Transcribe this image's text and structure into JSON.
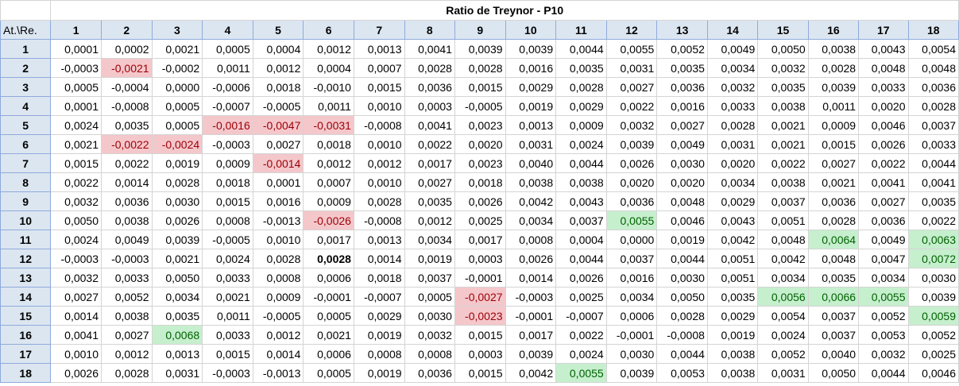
{
  "title": "Ratio de Treynor - P10",
  "corner": "At.\\Re.",
  "columns": [
    "1",
    "2",
    "3",
    "4",
    "5",
    "6",
    "7",
    "8",
    "9",
    "10",
    "11",
    "12",
    "13",
    "14",
    "15",
    "16",
    "17",
    "18"
  ],
  "rows": [
    {
      "label": "1",
      "values": [
        "0,0001",
        "0,0002",
        "0,0021",
        "0,0005",
        "0,0004",
        "0,0012",
        "0,0013",
        "0,0041",
        "0,0039",
        "0,0039",
        "0,0044",
        "0,0055",
        "0,0052",
        "0,0049",
        "0,0050",
        "0,0038",
        "0,0043",
        "0,0054"
      ]
    },
    {
      "label": "2",
      "values": [
        "-0,0003",
        "-0,0021",
        "-0,0002",
        "0,0011",
        "0,0012",
        "0,0004",
        "0,0007",
        "0,0028",
        "0,0028",
        "0,0016",
        "0,0035",
        "0,0031",
        "0,0035",
        "0,0034",
        "0,0032",
        "0,0028",
        "0,0048",
        "0,0048"
      ]
    },
    {
      "label": "3",
      "values": [
        "0,0005",
        "-0,0004",
        "0,0000",
        "-0,0006",
        "0,0018",
        "-0,0010",
        "0,0015",
        "0,0036",
        "0,0015",
        "0,0029",
        "0,0028",
        "0,0027",
        "0,0036",
        "0,0032",
        "0,0035",
        "0,0039",
        "0,0033",
        "0,0036"
      ]
    },
    {
      "label": "4",
      "values": [
        "0,0001",
        "-0,0008",
        "0,0005",
        "-0,0007",
        "-0,0005",
        "0,0011",
        "0,0010",
        "0,0003",
        "-0,0005",
        "0,0019",
        "0,0029",
        "0,0022",
        "0,0016",
        "0,0033",
        "0,0038",
        "0,0011",
        "0,0020",
        "0,0028"
      ]
    },
    {
      "label": "5",
      "values": [
        "0,0024",
        "0,0035",
        "0,0005",
        "-0,0016",
        "-0,0047",
        "-0,0031",
        "-0,0008",
        "0,0041",
        "0,0023",
        "0,0013",
        "0,0009",
        "0,0032",
        "0,0027",
        "0,0028",
        "0,0021",
        "0,0009",
        "0,0046",
        "0,0037"
      ]
    },
    {
      "label": "6",
      "values": [
        "0,0021",
        "-0,0022",
        "-0,0024",
        "-0,0003",
        "0,0027",
        "0,0018",
        "0,0010",
        "0,0022",
        "0,0020",
        "0,0031",
        "0,0024",
        "0,0039",
        "0,0049",
        "0,0031",
        "0,0021",
        "0,0015",
        "0,0026",
        "0,0033"
      ]
    },
    {
      "label": "7",
      "values": [
        "0,0015",
        "0,0022",
        "0,0019",
        "0,0009",
        "-0,0014",
        "0,0012",
        "0,0012",
        "0,0017",
        "0,0023",
        "0,0040",
        "0,0044",
        "0,0026",
        "0,0030",
        "0,0020",
        "0,0022",
        "0,0027",
        "0,0022",
        "0,0044"
      ]
    },
    {
      "label": "8",
      "values": [
        "0,0022",
        "0,0014",
        "0,0028",
        "0,0018",
        "0,0001",
        "0,0007",
        "0,0010",
        "0,0027",
        "0,0018",
        "0,0038",
        "0,0038",
        "0,0020",
        "0,0020",
        "0,0034",
        "0,0038",
        "0,0021",
        "0,0041",
        "0,0041"
      ]
    },
    {
      "label": "9",
      "values": [
        "0,0032",
        "0,0036",
        "0,0030",
        "0,0015",
        "0,0016",
        "0,0009",
        "0,0028",
        "0,0035",
        "0,0026",
        "0,0042",
        "0,0043",
        "0,0036",
        "0,0048",
        "0,0029",
        "0,0037",
        "0,0036",
        "0,0027",
        "0,0035"
      ]
    },
    {
      "label": "10",
      "values": [
        "0,0050",
        "0,0038",
        "0,0026",
        "0,0008",
        "-0,0013",
        "-0,0026",
        "-0,0008",
        "0,0012",
        "0,0025",
        "0,0034",
        "0,0037",
        "0,0055",
        "0,0046",
        "0,0043",
        "0,0051",
        "0,0028",
        "0,0036",
        "0,0022"
      ]
    },
    {
      "label": "11",
      "values": [
        "0,0024",
        "0,0049",
        "0,0039",
        "-0,0005",
        "0,0010",
        "0,0017",
        "0,0013",
        "0,0034",
        "0,0017",
        "0,0008",
        "0,0004",
        "0,0000",
        "0,0019",
        "0,0042",
        "0,0048",
        "0,0064",
        "0,0049",
        "0,0063"
      ]
    },
    {
      "label": "12",
      "values": [
        "-0,0003",
        "-0,0003",
        "0,0021",
        "0,0024",
        "0,0028",
        "0,0028",
        "0,0014",
        "0,0019",
        "0,0003",
        "0,0026",
        "0,0044",
        "0,0037",
        "0,0044",
        "0,0051",
        "0,0042",
        "0,0048",
        "0,0047",
        "0,0072"
      ]
    },
    {
      "label": "13",
      "values": [
        "0,0032",
        "0,0033",
        "0,0050",
        "0,0033",
        "0,0008",
        "0,0006",
        "0,0018",
        "0,0037",
        "-0,0001",
        "0,0014",
        "0,0026",
        "0,0016",
        "0,0030",
        "0,0051",
        "0,0034",
        "0,0035",
        "0,0034",
        "0,0030"
      ]
    },
    {
      "label": "14",
      "values": [
        "0,0027",
        "0,0052",
        "0,0034",
        "0,0021",
        "0,0009",
        "-0,0001",
        "-0,0007",
        "0,0005",
        "-0,0027",
        "-0,0003",
        "0,0025",
        "0,0034",
        "0,0050",
        "0,0035",
        "0,0056",
        "0,0066",
        "0,0055",
        "0,0039"
      ]
    },
    {
      "label": "15",
      "values": [
        "0,0014",
        "0,0038",
        "0,0035",
        "0,0011",
        "-0,0005",
        "0,0005",
        "0,0029",
        "0,0030",
        "-0,0023",
        "-0,0001",
        "-0,0007",
        "0,0006",
        "0,0028",
        "0,0029",
        "0,0054",
        "0,0037",
        "0,0052",
        "0,0059"
      ]
    },
    {
      "label": "16",
      "values": [
        "0,0041",
        "0,0027",
        "0,0068",
        "0,0033",
        "0,0012",
        "0,0021",
        "0,0019",
        "0,0032",
        "0,0015",
        "0,0017",
        "0,0022",
        "-0,0001",
        "-0,0008",
        "0,0019",
        "0,0024",
        "0,0037",
        "0,0053",
        "0,0052"
      ]
    },
    {
      "label": "17",
      "values": [
        "0,0010",
        "0,0012",
        "0,0013",
        "0,0015",
        "0,0014",
        "0,0006",
        "0,0008",
        "0,0008",
        "0,0003",
        "0,0039",
        "0,0024",
        "0,0030",
        "0,0044",
        "0,0038",
        "0,0052",
        "0,0040",
        "0,0032",
        "0,0025"
      ]
    },
    {
      "label": "18",
      "values": [
        "0,0026",
        "0,0028",
        "0,0031",
        "-0,0003",
        "-0,0013",
        "0,0005",
        "0,0019",
        "0,0036",
        "0,0015",
        "0,0042",
        "0,0055",
        "0,0039",
        "0,0053",
        "0,0038",
        "0,0031",
        "0,0050",
        "0,0044",
        "0,0046"
      ]
    }
  ],
  "highlights": {
    "negative_fill": "#f4c7cb",
    "negative_text": "#9c0006",
    "positive_fill": "#c6efce",
    "positive_text": "#006100",
    "header_fill": "#dce6f1",
    "negative_cells": [
      [
        2,
        2
      ],
      [
        5,
        4
      ],
      [
        5,
        5
      ],
      [
        5,
        6
      ],
      [
        6,
        2
      ],
      [
        6,
        3
      ],
      [
        7,
        5
      ],
      [
        10,
        6
      ],
      [
        14,
        9
      ],
      [
        15,
        9
      ]
    ],
    "positive_cells": [
      [
        10,
        12
      ],
      [
        11,
        16
      ],
      [
        11,
        18
      ],
      [
        12,
        18
      ],
      [
        14,
        15
      ],
      [
        14,
        16
      ],
      [
        14,
        17
      ],
      [
        15,
        18
      ],
      [
        16,
        3
      ],
      [
        18,
        11
      ]
    ],
    "bold_cells": [
      [
        12,
        6
      ]
    ]
  }
}
